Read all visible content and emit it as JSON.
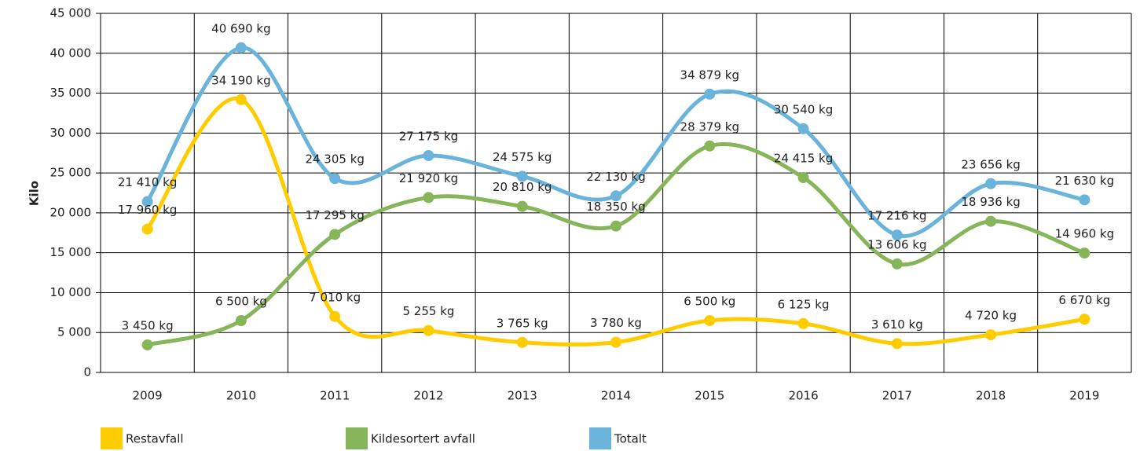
{
  "chart_data": {
    "type": "line",
    "y_label": "Kilo",
    "categories": [
      "2009",
      "2010",
      "2011",
      "2012",
      "2013",
      "2014",
      "2015",
      "2016",
      "2017",
      "2018",
      "2019"
    ],
    "series": [
      {
        "name": "Restavfall",
        "color": "#ffcc00",
        "values": [
          17960,
          34190,
          7010,
          5255,
          3765,
          3780,
          6500,
          6125,
          3610,
          4720,
          6670
        ],
        "value_labels": [
          "17 960 kg",
          "34 190 kg",
          "7 010 kg",
          "5 255 kg",
          "3 765 kg",
          "3 780 kg",
          "6 500 kg",
          "6 125 kg",
          "3 610 kg",
          "4 720 kg",
          "6 670 kg"
        ]
      },
      {
        "name": "Kildesortert avfall",
        "color": "#86b55a",
        "values": [
          3450,
          6500,
          17295,
          21920,
          20810,
          18350,
          28379,
          24415,
          13606,
          18936,
          14960
        ],
        "value_labels": [
          "3 450 kg",
          "6 500 kg",
          "17 295 kg",
          "21 920 kg",
          "20 810 kg",
          "18 350 kg",
          "28 379 kg",
          "24 415 kg",
          "13 606 kg",
          "18 936 kg",
          "14 960 kg"
        ]
      },
      {
        "name": "Totalt",
        "color": "#6ab4dc",
        "values": [
          21410,
          40690,
          24305,
          27175,
          24575,
          22130,
          34879,
          30540,
          17216,
          23656,
          21630
        ],
        "value_labels": [
          "21 410 kg",
          "40 690 kg",
          "24 305 kg",
          "27 175 kg",
          "24 575 kg",
          "22 130 kg",
          "34 879 kg",
          "30 540 kg",
          "17 216 kg",
          "23 656 kg",
          "21 630 kg"
        ]
      }
    ],
    "ylim": [
      0,
      45000
    ],
    "yticks": [
      0,
      {
        "value": 5000,
        "label": "5 000"
      },
      {
        "value": 10000,
        "label": "10 000"
      },
      {
        "value": 15000,
        "label": "15 000"
      },
      {
        "value": 20000,
        "label": "20 000"
      },
      {
        "value": 25000,
        "label": "25 000"
      },
      {
        "value": 30000,
        "label": "30 000"
      },
      {
        "value": 35000,
        "label": "35 000"
      },
      {
        "value": 40000,
        "label": "40 000"
      },
      {
        "value": 45000,
        "label": "45 000"
      }
    ],
    "grid": true,
    "legend": "bottom"
  }
}
